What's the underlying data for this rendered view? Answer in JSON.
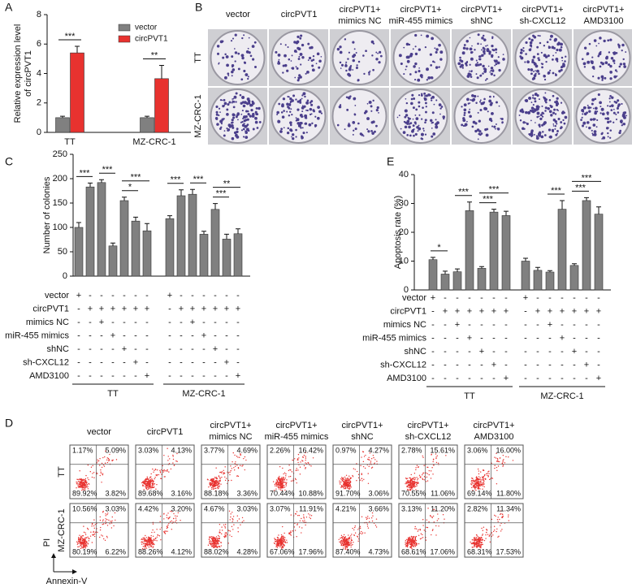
{
  "panel_labels": {
    "a": "A",
    "b": "B",
    "c": "C",
    "d": "D",
    "e": "E"
  },
  "chart_data": [
    {
      "type": "bar",
      "ylabel": [
        "Relative expression level",
        "of circPVT1"
      ],
      "categories": [
        "TT",
        "MZ-CRC-1"
      ],
      "series": [
        {
          "name": "vector",
          "color": "#808080",
          "values": [
            1.0,
            1.0
          ],
          "errors": [
            0.1,
            0.1
          ]
        },
        {
          "name": "circPVT1",
          "color": "#e8322f",
          "values": [
            5.4,
            3.65
          ],
          "errors": [
            0.45,
            0.9
          ]
        }
      ],
      "ylim": [
        0,
        8
      ],
      "yticks": [
        0,
        2,
        4,
        6,
        8
      ],
      "legend": "upper right",
      "annotations": [
        "***",
        "**"
      ]
    },
    {
      "type": "bar",
      "ylabel": "Number of colonies",
      "color": "#808080",
      "values": [
        100,
        183,
        192,
        62,
        155,
        113,
        93,
        118,
        165,
        168,
        86,
        137,
        76,
        87
      ],
      "errors": [
        10,
        8,
        6,
        6,
        7,
        8,
        15,
        6,
        12,
        10,
        6,
        12,
        10,
        10
      ],
      "ylim": [
        0,
        250
      ],
      "yticks": [
        0,
        50,
        100,
        150,
        200,
        250
      ],
      "conditions": [
        {
          "label": "vector",
          "signs": [
            "+",
            "-",
            "-",
            "-",
            "-",
            "-",
            "-",
            "+",
            "-",
            "-",
            "-",
            "-",
            "-",
            "-"
          ]
        },
        {
          "label": "circPVT1",
          "signs": [
            "-",
            "+",
            "+",
            "+",
            "+",
            "+",
            "+",
            "-",
            "+",
            "+",
            "+",
            "+",
            "+",
            "+"
          ]
        },
        {
          "label": "mimics NC",
          "signs": [
            "-",
            "-",
            "+",
            "-",
            "-",
            "-",
            "-",
            "-",
            "-",
            "+",
            "-",
            "-",
            "-",
            "-"
          ]
        },
        {
          "label": "miR-455 mimics",
          "signs": [
            "-",
            "-",
            "-",
            "+",
            "-",
            "-",
            "-",
            "-",
            "-",
            "-",
            "+",
            "-",
            "-",
            "-"
          ]
        },
        {
          "label": "shNC",
          "signs": [
            "-",
            "-",
            "-",
            "-",
            "+",
            "-",
            "-",
            "-",
            "-",
            "-",
            "-",
            "+",
            "-",
            "-"
          ]
        },
        {
          "label": "sh-CXCL12",
          "signs": [
            "-",
            "-",
            "-",
            "-",
            "-",
            "+",
            "-",
            "-",
            "-",
            "-",
            "-",
            "-",
            "+",
            "-"
          ]
        },
        {
          "label": "AMD3100",
          "signs": [
            "-",
            "-",
            "-",
            "-",
            "-",
            "-",
            "+",
            "-",
            "-",
            "-",
            "-",
            "-",
            "-",
            "+"
          ]
        }
      ],
      "groups": [
        "TT",
        "MZ-CRC-1"
      ],
      "annotations": [
        "***",
        "***",
        "*",
        "***",
        "***",
        "***",
        "***",
        "**"
      ]
    },
    {
      "type": "bar",
      "ylabel": "Apoptosis rate (%)",
      "color": "#808080",
      "values": [
        10.5,
        5.5,
        6.3,
        27.5,
        7.5,
        27,
        25.8,
        10,
        6.8,
        6.2,
        28,
        8.5,
        31,
        26.3
      ],
      "errors": [
        0.8,
        1,
        1,
        3,
        0.6,
        1,
        1.5,
        1,
        1,
        0.5,
        3,
        0.6,
        1,
        2.5
      ],
      "ylim": [
        0,
        40
      ],
      "yticks": [
        0,
        10,
        20,
        30,
        40
      ],
      "conditions": [
        {
          "label": "vector",
          "signs": [
            "+",
            "-",
            "-",
            "-",
            "-",
            "-",
            "-",
            "+",
            "-",
            "-",
            "-",
            "-",
            "-",
            "-"
          ]
        },
        {
          "label": "circPVT1",
          "signs": [
            "-",
            "+",
            "+",
            "+",
            "+",
            "+",
            "+",
            "-",
            "+",
            "+",
            "+",
            "+",
            "+",
            "+"
          ]
        },
        {
          "label": "mimics NC",
          "signs": [
            "-",
            "-",
            "+",
            "-",
            "-",
            "-",
            "-",
            "-",
            "-",
            "+",
            "-",
            "-",
            "-",
            "-"
          ]
        },
        {
          "label": "miR-455 mimics",
          "signs": [
            "-",
            "-",
            "-",
            "+",
            "-",
            "-",
            "-",
            "-",
            "-",
            "-",
            "+",
            "-",
            "-",
            "-"
          ]
        },
        {
          "label": "shNC",
          "signs": [
            "-",
            "-",
            "-",
            "-",
            "+",
            "-",
            "-",
            "-",
            "-",
            "-",
            "-",
            "+",
            "-",
            "-"
          ]
        },
        {
          "label": "sh-CXCL12",
          "signs": [
            "-",
            "-",
            "-",
            "-",
            "-",
            "+",
            "-",
            "-",
            "-",
            "-",
            "-",
            "-",
            "+",
            "-"
          ]
        },
        {
          "label": "AMD3100",
          "signs": [
            "-",
            "-",
            "-",
            "-",
            "-",
            "-",
            "+",
            "-",
            "-",
            "-",
            "-",
            "-",
            "-",
            "+"
          ]
        }
      ],
      "groups": [
        "TT",
        "MZ-CRC-1"
      ],
      "annotations": [
        "*",
        "***",
        "***",
        "***",
        "***",
        "***",
        "***"
      ]
    }
  ],
  "colony_assay": {
    "columns": [
      [
        "vector"
      ],
      [
        "circPVT1"
      ],
      [
        "circPVT1+",
        "mimics NC"
      ],
      [
        "circPVT1+",
        "miR-455 mimics"
      ],
      [
        "circPVT1+",
        "shNC"
      ],
      [
        "circPVT1+",
        "sh-CXCL12"
      ],
      [
        "circPVT1+",
        "AMD3100"
      ]
    ],
    "rows": [
      "TT",
      "MZ-CRC-1"
    ]
  },
  "flow_cytometry": {
    "columns": [
      [
        "vector"
      ],
      [
        "circPVT1"
      ],
      [
        "circPVT1+",
        "mimics NC"
      ],
      [
        "circPVT1+",
        "miR-455 mimics"
      ],
      [
        "circPVT1+",
        "shNC"
      ],
      [
        "circPVT1+",
        "sh-CXCL12"
      ],
      [
        "circPVT1+",
        "AMD3100"
      ]
    ],
    "rows": [
      "TT",
      "MZ-CRC-1"
    ],
    "quadrants": [
      [
        [
          "1.17%",
          "5.09%",
          "89.92%",
          "3.82%"
        ],
        [
          "3.03%",
          "4.13%",
          "89.68%",
          "3.16%"
        ],
        [
          "3.77%",
          "4.69%",
          "88.18%",
          "3.36%"
        ],
        [
          "2.26%",
          "16.42%",
          "70.44%",
          "10.88%"
        ],
        [
          "0.97%",
          "4.27%",
          "91.70%",
          "3.06%"
        ],
        [
          "2.78%",
          "15.61%",
          "70.55%",
          "11.06%"
        ],
        [
          "3.06%",
          "16.00%",
          "69.14%",
          "11.80%"
        ]
      ],
      [
        [
          "10.56%",
          "3.03%",
          "80.19%",
          "6.22%"
        ],
        [
          "4.42%",
          "3.20%",
          "88.26%",
          "4.12%"
        ],
        [
          "4.67%",
          "3.03%",
          "88.02%",
          "4.28%"
        ],
        [
          "3.07%",
          "11.91%",
          "67.06%",
          "17.96%"
        ],
        [
          "4.21%",
          "3.66%",
          "87.40%",
          "4.73%"
        ],
        [
          "3.13%",
          "11.20%",
          "68.61%",
          "17.06%"
        ],
        [
          "2.82%",
          "11.34%",
          "68.31%",
          "17.53%"
        ]
      ]
    ],
    "x_label": "Annexin-V",
    "y_label": "PI"
  }
}
